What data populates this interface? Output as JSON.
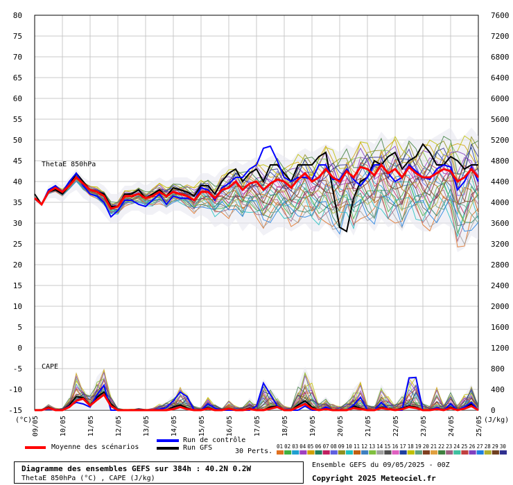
{
  "chart_data": {
    "type": "line",
    "title": "Diagramme des ensembles GEFS sur 384h : 40.2N 0.2W",
    "subtitle": "ThetaE 850hPa (°C) , CAPE (J/kg)",
    "left_axis_unit": "(°C)",
    "right_axis_unit": "(J/kg)",
    "left_ticks": [
      80,
      75,
      70,
      65,
      60,
      55,
      50,
      45,
      40,
      35,
      30,
      25,
      20,
      15,
      10,
      5,
      0,
      -5,
      -10,
      -15
    ],
    "right_ticks": [
      7600,
      7200,
      6800,
      6400,
      6000,
      5600,
      5200,
      4800,
      4400,
      4000,
      3600,
      3200,
      2800,
      2400,
      2000,
      1600,
      1200,
      800,
      400,
      0
    ],
    "x_labels": [
      "09/05",
      "10/05",
      "11/05",
      "12/05",
      "13/05",
      "14/05",
      "15/05",
      "16/05",
      "17/05",
      "18/05",
      "19/05",
      "20/05",
      "21/05",
      "22/05",
      "23/05",
      "24/05",
      "25/05"
    ],
    "panel_labels": {
      "thetae": "ThetaE 850hPa",
      "cape": "CAPE"
    },
    "grid": true,
    "thetae": {
      "x_step_days": 0.25,
      "mean": [
        36,
        34.5,
        37.5,
        38.5,
        37.5,
        39,
        41,
        39.5,
        38,
        37.5,
        36.5,
        33.5,
        34,
        36.5,
        36.5,
        37,
        36,
        36.5,
        37.5,
        36.5,
        37.5,
        37,
        36.5,
        35.5,
        37.5,
        37.5,
        36,
        38,
        38.5,
        40,
        38,
        39.5,
        40,
        38,
        39.5,
        40.5,
        40,
        38.5,
        40.5,
        42,
        40,
        41,
        43,
        41,
        40,
        42.5,
        41,
        43.5,
        43,
        41.5,
        44,
        42,
        43,
        41,
        43.5,
        42,
        41,
        41,
        42,
        43,
        42.5,
        40,
        41,
        43,
        41
      ],
      "control": [
        36,
        34.5,
        38,
        39,
        37.5,
        40,
        42,
        39,
        37,
        36.5,
        35,
        31.5,
        33,
        35.5,
        35.5,
        34.5,
        34,
        35.5,
        37,
        34.5,
        36.5,
        36,
        36,
        35.5,
        38.5,
        38,
        35.5,
        38.5,
        39.5,
        41,
        41,
        43,
        44,
        48,
        48.5,
        45,
        41,
        40,
        41,
        41,
        40.5,
        44,
        44,
        40.5,
        40.5,
        43,
        40.5,
        39,
        41,
        44,
        44,
        42,
        40,
        41,
        44,
        42.5,
        41,
        40.5,
        43,
        44,
        43.5,
        38,
        40,
        43.5,
        40
      ],
      "gfs": [
        37,
        34.5,
        37.5,
        38,
        37,
        39,
        42,
        40,
        38,
        37.5,
        37,
        34,
        34,
        37,
        37,
        38,
        36,
        37,
        38,
        36.5,
        38.5,
        38,
        37.5,
        36.5,
        39,
        39,
        37,
        40,
        42,
        43,
        40,
        42,
        43,
        40,
        44,
        44,
        42,
        40,
        44,
        44,
        44,
        46,
        47,
        38,
        29,
        28,
        36,
        40,
        41,
        45,
        44,
        46,
        47,
        43,
        45,
        46,
        49,
        47,
        44,
        44,
        46,
        45,
        43,
        44,
        44
      ],
      "spread_top": [
        37,
        35,
        39,
        40,
        39,
        41,
        43,
        41,
        40,
        40,
        39,
        37,
        37,
        39,
        39,
        40,
        39,
        40,
        41,
        40,
        41,
        41,
        41,
        40,
        42,
        42,
        41,
        43,
        44,
        45,
        44,
        45,
        46,
        45,
        46,
        47,
        46,
        45,
        47,
        48,
        47,
        48,
        49,
        48,
        47,
        49,
        48,
        50,
        50,
        49,
        52,
        50,
        51,
        49,
        51,
        50,
        50,
        50,
        51,
        52,
        53,
        50,
        51,
        53,
        51
      ],
      "spread_bot": [
        35,
        34,
        36,
        36,
        35,
        37,
        38,
        36,
        35,
        34,
        32,
        30,
        30,
        32,
        33,
        33,
        32,
        32,
        33,
        32,
        33,
        33,
        32,
        31,
        32,
        31,
        29,
        30,
        29,
        31,
        28,
        30,
        29,
        27,
        28,
        29,
        29,
        28,
        29,
        30,
        28,
        28,
        30,
        28,
        26,
        30,
        27,
        31,
        30,
        28,
        31,
        29,
        30,
        28,
        31,
        29,
        28,
        28,
        29,
        30,
        29,
        23,
        24,
        27,
        26
      ]
    },
    "cape": {
      "mean": [
        0,
        0,
        40,
        0,
        0,
        60,
        180,
        220,
        90,
        200,
        300,
        80,
        0,
        0,
        0,
        0,
        0,
        0,
        0,
        0,
        20,
        60,
        20,
        0,
        0,
        30,
        0,
        0,
        30,
        0,
        0,
        20,
        0,
        0,
        30,
        60,
        0,
        0,
        60,
        120,
        30,
        0,
        20,
        0,
        0,
        0,
        40,
        20,
        0,
        0,
        40,
        20,
        0,
        20,
        60,
        40,
        0,
        0,
        20,
        0,
        40,
        0,
        30,
        80,
        0
      ],
      "control": [
        0,
        0,
        20,
        0,
        0,
        80,
        150,
        120,
        60,
        300,
        480,
        0,
        0,
        0,
        0,
        0,
        0,
        0,
        20,
        50,
        180,
        350,
        260,
        0,
        0,
        120,
        40,
        0,
        0,
        0,
        0,
        0,
        80,
        520,
        300,
        80,
        0,
        0,
        0,
        80,
        0,
        0,
        60,
        0,
        0,
        0,
        100,
        250,
        0,
        0,
        150,
        20,
        0,
        0,
        620,
        630,
        0,
        0,
        50,
        0,
        120,
        0,
        60,
        150,
        0
      ],
      "gfs": [
        0,
        0,
        60,
        0,
        0,
        100,
        260,
        240,
        100,
        250,
        350,
        120,
        0,
        0,
        0,
        0,
        0,
        0,
        0,
        0,
        60,
        100,
        40,
        0,
        0,
        50,
        0,
        0,
        0,
        0,
        0,
        40,
        0,
        0,
        60,
        80,
        0,
        0,
        100,
        180,
        60,
        0,
        40,
        0,
        0,
        0,
        80,
        40,
        0,
        0,
        60,
        30,
        0,
        40,
        80,
        60,
        0,
        0,
        40,
        0,
        60,
        0,
        50,
        120,
        0
      ],
      "spread_top": [
        20,
        20,
        120,
        40,
        40,
        260,
        740,
        400,
        300,
        650,
        800,
        300,
        40,
        20,
        20,
        40,
        20,
        40,
        120,
        160,
        300,
        450,
        340,
        80,
        60,
        250,
        120,
        40,
        200,
        80,
        60,
        240,
        120,
        600,
        420,
        260,
        80,
        60,
        480,
        840,
        520,
        140,
        260,
        120,
        80,
        160,
        420,
        560,
        120,
        80,
        500,
        260,
        120,
        300,
        650,
        660,
        140,
        100,
        450,
        120,
        360,
        120,
        300,
        500,
        120
      ]
    },
    "legend": {
      "mean": "Moyenne des scénarios",
      "control": "Run de contrôle",
      "gfs": "Run GFS",
      "perts": "30 Perts.",
      "pert_numbers": [
        "01",
        "02",
        "03",
        "04",
        "05",
        "06",
        "07",
        "08",
        "09",
        "10",
        "11",
        "12",
        "13",
        "14",
        "15",
        "16",
        "17",
        "18",
        "19",
        "20",
        "21",
        "22",
        "23",
        "24",
        "25",
        "26",
        "27",
        "28",
        "29",
        "30"
      ]
    },
    "colors": {
      "mean": "#ff0000",
      "control": "#0000ff",
      "gfs": "#000000",
      "grid": "#c8c8c8",
      "perts": [
        "#e07020",
        "#40b040",
        "#20a0d0",
        "#a040c0",
        "#d0a000",
        "#208060",
        "#c02060",
        "#6060e0",
        "#909020",
        "#20c0c0",
        "#c06010",
        "#4080c0",
        "#80c040",
        "#a0a0a0",
        "#505050",
        "#e060c0",
        "#2040a0",
        "#c0c000",
        "#60a080",
        "#804020",
        "#e0a040",
        "#408040",
        "#a06080",
        "#40c0a0",
        "#c04040",
        "#8040c0",
        "#2080e0",
        "#b0b030",
        "#704020",
        "#303090"
      ]
    }
  },
  "info": {
    "title": "Diagramme des ensembles GEFS sur 384h : 40.2N 0.2W",
    "subtitle": "ThetaE 850hPa (°C) , CAPE (J/kg)",
    "ensemble_date": "Ensemble GEFS du 09/05/2025 - 00Z",
    "copyright": "Copyright 2025 Meteociel.fr"
  }
}
